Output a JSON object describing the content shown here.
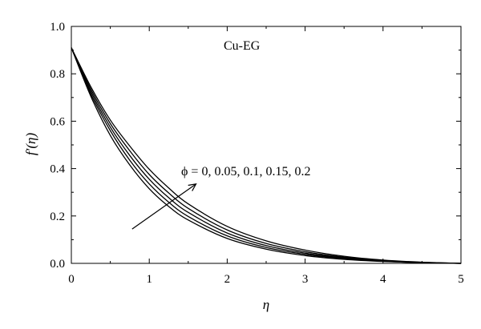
{
  "chart_data": {
    "type": "line",
    "xlabel": "η",
    "ylabel": "f′(η)",
    "xlim": [
      0,
      5
    ],
    "ylim": [
      0,
      1
    ],
    "xticks": [
      "0",
      "1",
      "2",
      "3",
      "4",
      "5"
    ],
    "yticks": [
      "0.0",
      "0.2",
      "0.4",
      "0.6",
      "0.8",
      "1.0"
    ],
    "grid": false,
    "annotations": {
      "fluid": "Cu-EG",
      "parameter": "ϕ = 0, 0.05, 0.1, 0.15, 0.2"
    },
    "x": [
      0,
      0.25,
      0.5,
      0.75,
      1,
      1.25,
      1.5,
      2,
      2.5,
      3,
      3.5,
      4,
      4.5,
      5
    ],
    "series": [
      {
        "values": [
          0.91,
          0.705,
          0.54,
          0.415,
          0.315,
          0.24,
          0.183,
          0.105,
          0.06,
          0.033,
          0.017,
          0.008,
          0.003,
          0.0
        ]
      },
      {
        "values": [
          0.91,
          0.715,
          0.56,
          0.435,
          0.335,
          0.258,
          0.198,
          0.116,
          0.067,
          0.038,
          0.02,
          0.009,
          0.003,
          0.0
        ]
      },
      {
        "values": [
          0.91,
          0.725,
          0.575,
          0.455,
          0.355,
          0.277,
          0.215,
          0.128,
          0.075,
          0.043,
          0.023,
          0.011,
          0.004,
          0.0
        ]
      },
      {
        "values": [
          0.91,
          0.735,
          0.59,
          0.475,
          0.375,
          0.297,
          0.232,
          0.141,
          0.084,
          0.049,
          0.026,
          0.012,
          0.004,
          0.0
        ]
      },
      {
        "values": [
          0.91,
          0.745,
          0.605,
          0.495,
          0.397,
          0.318,
          0.251,
          0.156,
          0.095,
          0.056,
          0.03,
          0.014,
          0.005,
          0.0
        ]
      }
    ]
  }
}
